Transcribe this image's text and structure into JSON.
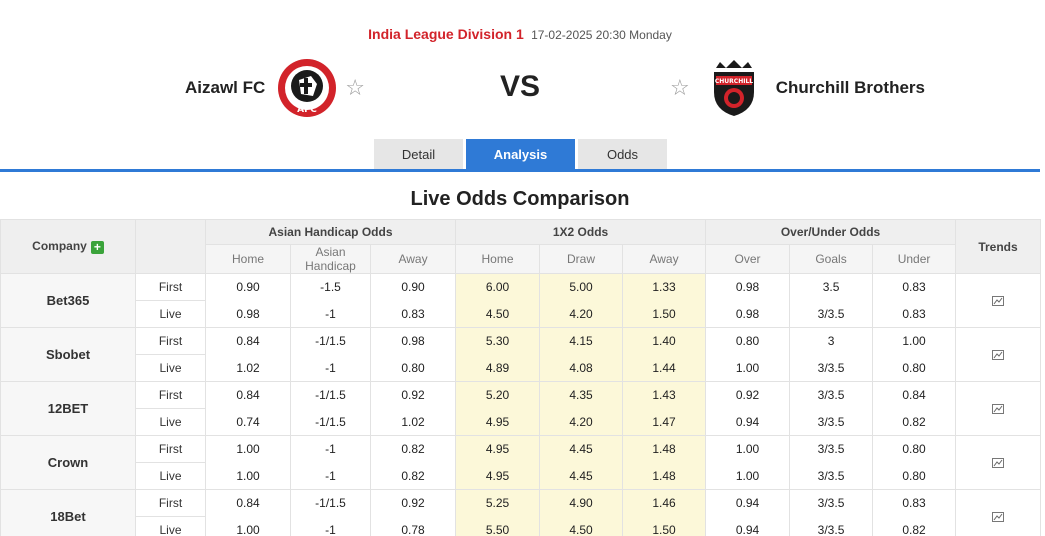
{
  "match": {
    "league": "India League Division 1",
    "datetime": "17-02-2025 20:30 Monday",
    "home_team": "Aizawl FC",
    "away_team": "Churchill Brothers",
    "vs": "VS"
  },
  "tabs": [
    {
      "label": "Detail",
      "active": false
    },
    {
      "label": "Analysis",
      "active": true
    },
    {
      "label": "Odds",
      "active": false
    }
  ],
  "section_title": "Live Odds Comparison",
  "table": {
    "company_header": "Company",
    "group_headers": [
      "Asian Handicap Odds",
      "1X2 Odds",
      "Over/Under Odds"
    ],
    "trends_header": "Trends",
    "sub_headers": [
      "Home",
      "Asian Handicap",
      "Away",
      "Home",
      "Draw",
      "Away",
      "Over",
      "Goals",
      "Under"
    ],
    "rows": [
      {
        "company": "Bet365",
        "first": {
          "type": "First",
          "values": [
            "0.90",
            "-1.5",
            "0.90",
            "6.00",
            "5.00",
            "1.33",
            "0.98",
            "3.5",
            "0.83"
          ]
        },
        "live": {
          "type": "Live",
          "values": [
            "0.98",
            "-1",
            "0.83",
            "4.50",
            "4.20",
            "1.50",
            "0.98",
            "3/3.5",
            "0.83"
          ]
        }
      },
      {
        "company": "Sbobet",
        "first": {
          "type": "First",
          "values": [
            "0.84",
            "-1/1.5",
            "0.98",
            "5.30",
            "4.15",
            "1.40",
            "0.80",
            "3",
            "1.00"
          ]
        },
        "live": {
          "type": "Live",
          "values": [
            "1.02",
            "-1",
            "0.80",
            "4.89",
            "4.08",
            "1.44",
            "1.00",
            "3/3.5",
            "0.80"
          ]
        }
      },
      {
        "company": "12BET",
        "first": {
          "type": "First",
          "values": [
            "0.84",
            "-1/1.5",
            "0.92",
            "5.20",
            "4.35",
            "1.43",
            "0.92",
            "3/3.5",
            "0.84"
          ]
        },
        "live": {
          "type": "Live",
          "values": [
            "0.74",
            "-1/1.5",
            "1.02",
            "4.95",
            "4.20",
            "1.47",
            "0.94",
            "3/3.5",
            "0.82"
          ]
        }
      },
      {
        "company": "Crown",
        "first": {
          "type": "First",
          "values": [
            "1.00",
            "-1",
            "0.82",
            "4.95",
            "4.45",
            "1.48",
            "1.00",
            "3/3.5",
            "0.80"
          ]
        },
        "live": {
          "type": "Live",
          "values": [
            "1.00",
            "-1",
            "0.82",
            "4.95",
            "4.45",
            "1.48",
            "1.00",
            "3/3.5",
            "0.80"
          ]
        }
      },
      {
        "company": "18Bet",
        "first": {
          "type": "First",
          "values": [
            "0.84",
            "-1/1.5",
            "0.92",
            "5.25",
            "4.90",
            "1.46",
            "0.94",
            "3/3.5",
            "0.83"
          ]
        },
        "live": {
          "type": "Live",
          "values": [
            "1.00",
            "-1",
            "0.78",
            "5.50",
            "4.50",
            "1.50",
            "0.94",
            "3/3.5",
            "0.82"
          ]
        }
      }
    ]
  },
  "colors": {
    "accent": "#2f7ad6",
    "league": "#d2232a",
    "x12_highlight": "#fcf8d9",
    "plus": "#3aa33a"
  },
  "icons": {
    "favorite": "star-outline-icon",
    "add": "plus-icon",
    "trend": "line-chart-icon"
  }
}
